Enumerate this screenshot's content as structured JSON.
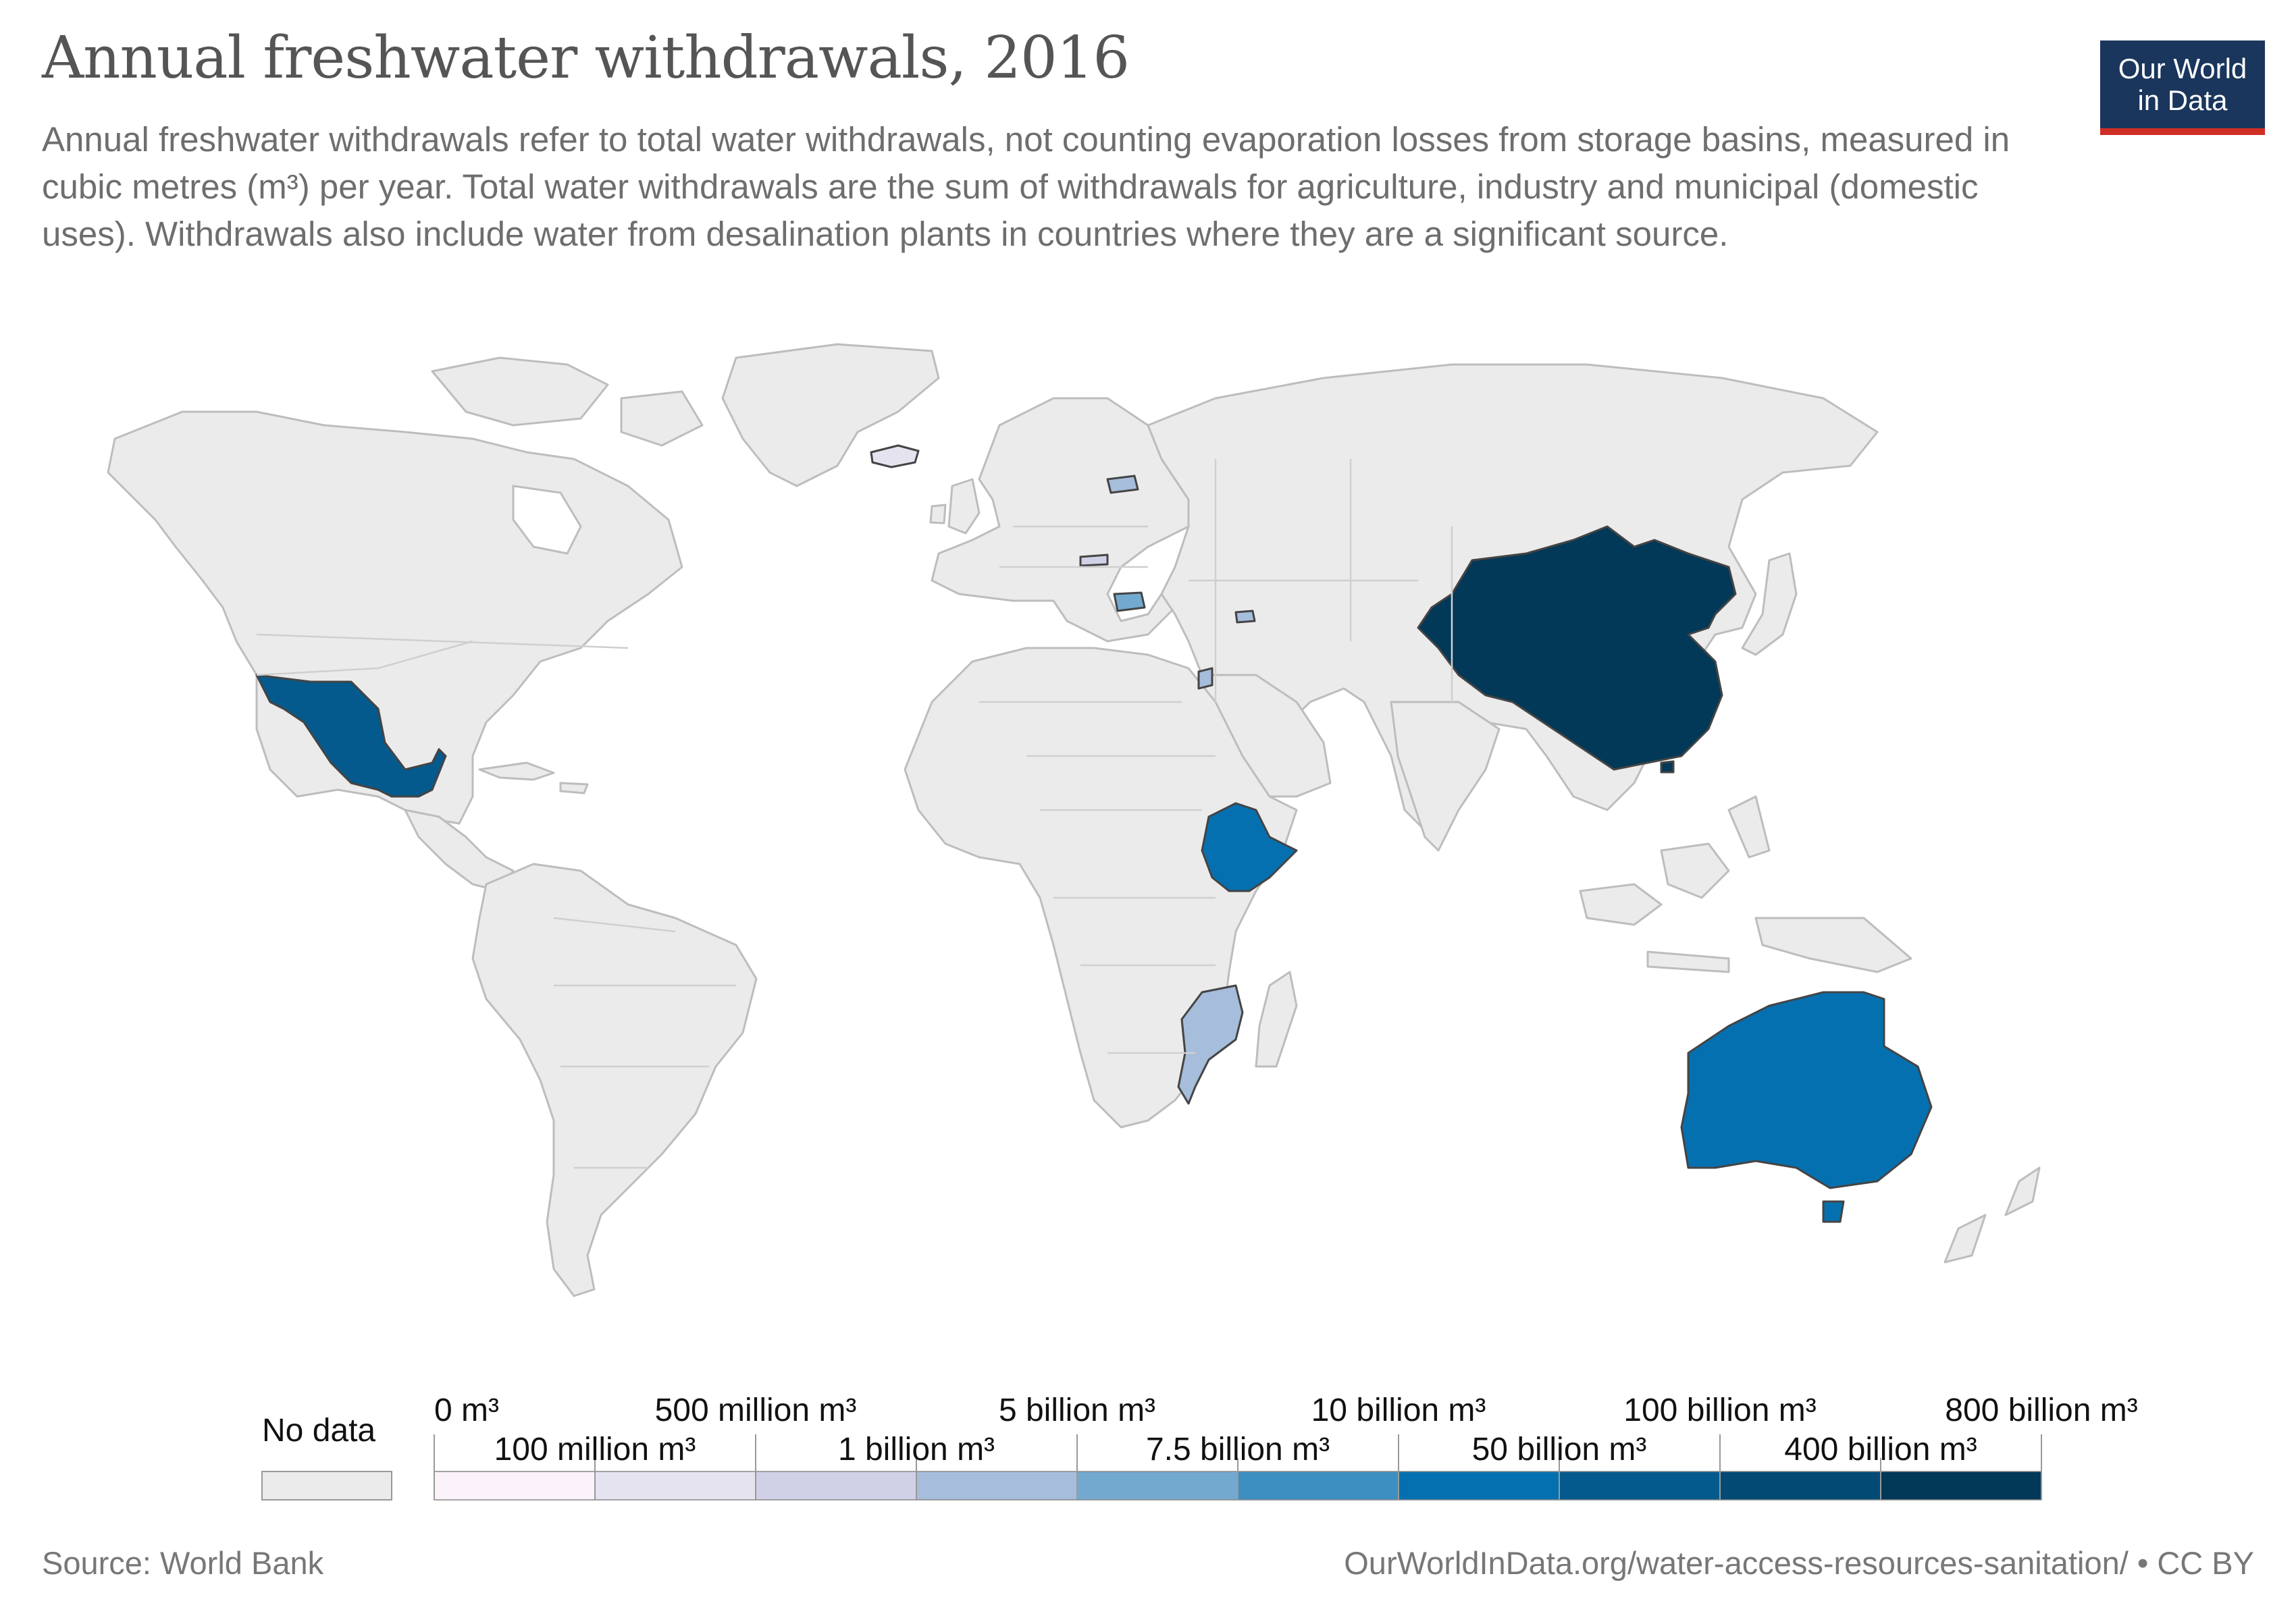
{
  "header": {
    "title": "Annual freshwater withdrawals, 2016",
    "subtitle": "Annual freshwater withdrawals refer to total water withdrawals, not counting evaporation losses from storage basins, measured in cubic metres (m³) per year. Total water withdrawals are the sum of withdrawals for agriculture, industry and municipal (domestic uses). Withdrawals also include water from desalination plants in countries where they are a significant source."
  },
  "logo": {
    "line1": "Our World",
    "line2": "in Data",
    "bg": "#1a365c",
    "accent": "#cf2e25"
  },
  "legend": {
    "no_data_label": "No data",
    "no_data_color": "#ebebeb",
    "top_labels": [
      "0 m³",
      "500 million m³",
      "5 billion m³",
      "10 billion m³",
      "100 billion m³",
      "800 billion m³"
    ],
    "bottom_labels": [
      "100 million m³",
      "1 billion m³",
      "7.5 billion m³",
      "50 billion m³",
      "400 billion m³"
    ],
    "colors": [
      "#fbf3f9",
      "#e6e3f0",
      "#d0d1e6",
      "#a6bddb",
      "#74a9cf",
      "#3d8fc1",
      "#0570b0",
      "#045a8d",
      "#034a75",
      "#023858"
    ]
  },
  "map": {
    "countries": [
      {
        "name": "China",
        "color": "#023858"
      },
      {
        "name": "Mexico",
        "color": "#045a8d"
      },
      {
        "name": "Australia",
        "color": "#0570b0"
      },
      {
        "name": "Ethiopia",
        "color": "#0570b0"
      },
      {
        "name": "Mozambique",
        "color": "#a6bddb"
      },
      {
        "name": "Latvia",
        "color": "#a6bddb"
      },
      {
        "name": "Bulgaria",
        "color": "#74a9cf"
      },
      {
        "name": "Jordan",
        "color": "#a6bddb"
      },
      {
        "name": "Armenia",
        "color": "#a6bddb"
      },
      {
        "name": "Slovakia",
        "color": "#d0d1e6"
      },
      {
        "name": "Iceland",
        "color": "#e6e3f0"
      }
    ]
  },
  "footer": {
    "source": "Source: World Bank",
    "url": "OurWorldInData.org/water-access-resources-sanitation/ • CC BY"
  }
}
